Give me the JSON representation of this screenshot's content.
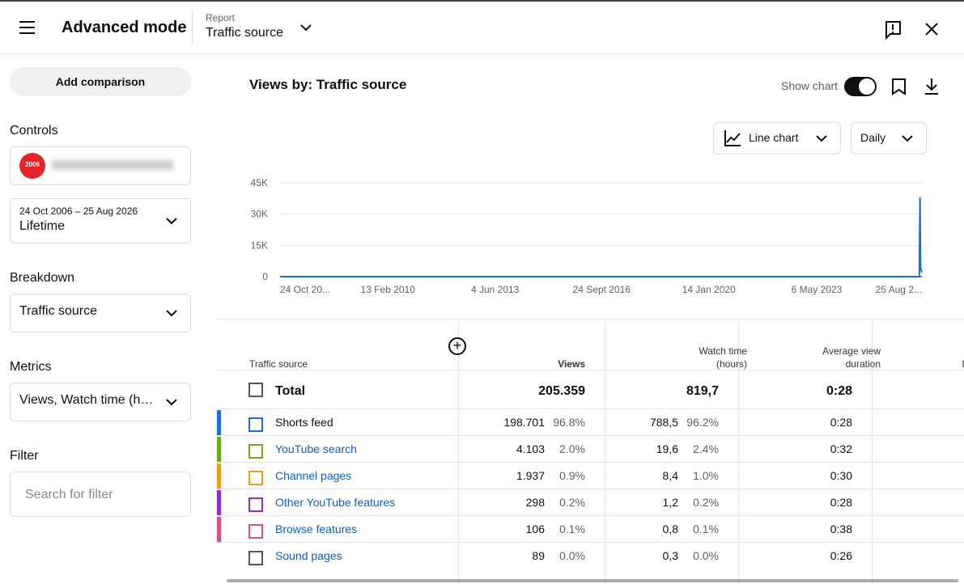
{
  "header": {
    "title": "Advanced mode",
    "report_label": "Report",
    "report": "Traffic source"
  },
  "sidebar": {
    "add_comparison": "Add comparison",
    "controls": "Controls",
    "channel_logo": "2006",
    "date_range": "24 Oct 2006 – 25 Aug 2026",
    "period": "Lifetime",
    "breakdown": "Breakdown",
    "breakdown_value": "Traffic source",
    "metrics": "Metrics",
    "metrics_value": "Views, Watch time (h…",
    "filter": "Filter",
    "filter_placeholder": "Search for filter"
  },
  "chart_panel": {
    "title": "Views by: Traffic source",
    "show_chart": "Show chart",
    "chart_type": "Line chart",
    "interval": "Daily"
  },
  "chart_data": {
    "type": "line",
    "xlim": [
      0,
      100
    ],
    "xticks": [
      {
        "value": 0,
        "label": "24 Oct 20..."
      },
      {
        "value": 16.8,
        "label": "13 Feb 2010"
      },
      {
        "value": 33.5,
        "label": "4 Jun 2013"
      },
      {
        "value": 50.1,
        "label": "24 Sept 2016"
      },
      {
        "value": 66.8,
        "label": "14 Jan 2020"
      },
      {
        "value": 83.6,
        "label": "6 May 2023"
      },
      {
        "value": 100,
        "label": "25 Aug 2..."
      }
    ],
    "ylim": [
      0,
      45000
    ],
    "yticks": [
      0,
      {
        "value": 15000,
        "label": "15K"
      },
      {
        "value": 30000,
        "label": "30K"
      },
      {
        "value": 45000,
        "label": "45K"
      }
    ],
    "grid": true,
    "series": [
      {
        "color": "#d8527a",
        "x": [
          0,
          100
        ],
        "values": [
          0,
          0
        ]
      },
      {
        "color": "#1a6fd1",
        "x": [
          0,
          99.6,
          99.7,
          99.8,
          100
        ],
        "values": [
          0,
          0,
          38000,
          4000,
          2000
        ]
      }
    ]
  },
  "table": {
    "columns": [
      [
        "Traffic source"
      ],
      [
        "Views"
      ],
      [
        "Watch time",
        "(hours)"
      ],
      [
        "Average view",
        "duration"
      ],
      [
        "Impressions"
      ]
    ],
    "total": [
      "Total",
      "205.359",
      "819,7",
      "0:28"
    ],
    "rows": [
      {
        "color": "#1a6fd1",
        "cells": [
          "Shorts feed",
          "198.701",
          "96.8%",
          "788,5",
          "96.2%",
          "0:28"
        ]
      },
      {
        "color": "#6aab1e",
        "cells": [
          "YouTube search",
          "4.103",
          "2.0%",
          "19,6",
          "2.4%",
          "0:32"
        ]
      },
      {
        "color": "#f09a1e",
        "cells": [
          "Channel pages",
          "1.937",
          "0.9%",
          "8,4",
          "1.0%",
          "0:30"
        ]
      },
      {
        "color": "#8e2fc8",
        "cells": [
          "Other YouTube features",
          "298",
          "0.2%",
          "1,2",
          "0.2%",
          "0:28"
        ]
      },
      {
        "color": "#d8527a",
        "cells": [
          "Browse features",
          "106",
          "0.1%",
          "0,8",
          "0.1%",
          "0:38"
        ]
      },
      {
        "color": "#555555",
        "cells": [
          "Sound pages",
          "89",
          "0.0%",
          "0,3",
          "0.0%",
          "0:26"
        ]
      }
    ]
  }
}
